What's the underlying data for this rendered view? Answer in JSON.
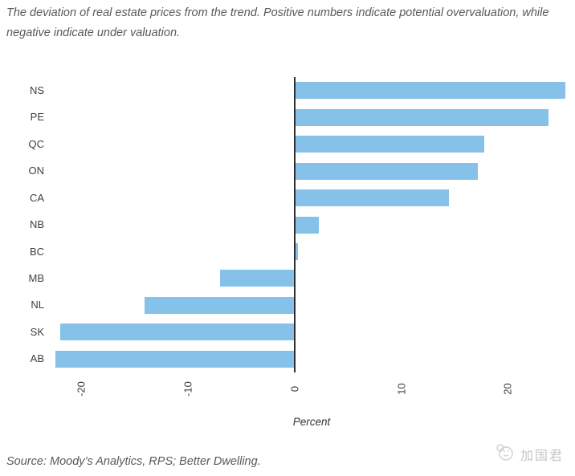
{
  "title": "The deviation of real estate prices from the trend. Positive numbers indicate potential overvaluation, while negative indicate under valuation.",
  "source": "Source: Moody’s Analytics, RPS; Better Dwelling.",
  "watermark": {
    "icon": "mascot-logo-icon",
    "text": "加国君"
  },
  "chart_data": {
    "type": "bar",
    "orientation": "horizontal",
    "title": "The deviation of real estate prices from the trend. Positive numbers indicate potential overvaluation, while negative indicate under valuation.",
    "categories": [
      "NS",
      "PE",
      "QC",
      "ON",
      "CA",
      "NB",
      "BC",
      "MB",
      "NL",
      "SK",
      "AB"
    ],
    "values": [
      25.4,
      23.8,
      17.8,
      17.2,
      14.5,
      2.3,
      0.3,
      -7.0,
      -14.1,
      -22.0,
      -22.4
    ],
    "xlabel": "Percent",
    "ylabel": "",
    "xticks": [
      -20,
      -10,
      0,
      10,
      20
    ],
    "xlim": [
      -22.8,
      26.0
    ],
    "grid": false,
    "legend": false,
    "bar_color": "#85C1E8",
    "axis_line_color": "#2e2e2e",
    "label_color": "#3f3f3f"
  }
}
